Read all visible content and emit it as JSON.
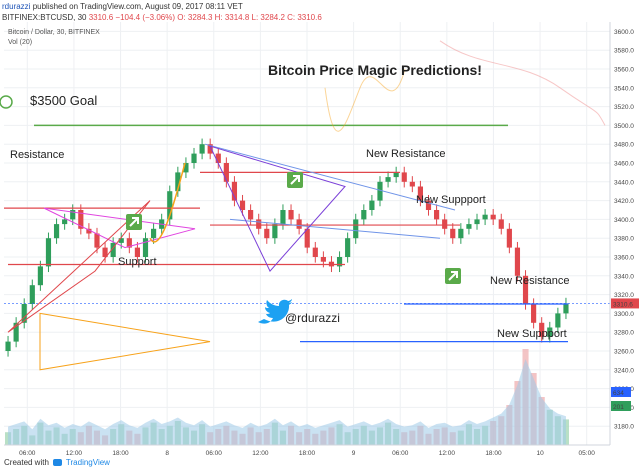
{
  "header": {
    "user": "rdurazzi",
    "published": "published on TradingView.com, August 09, 2017 08:11 VET",
    "symbol": "BITFINEX:BTCUSD, 30",
    "last": "3310.6",
    "change": "−104.4 (−3.06%)",
    "ohlc": "O: 3284.3  H: 3314.8  L: 3284.2  C: 3310.6"
  },
  "chart_meta": {
    "series_label": "Bitcoin / Dollar, 30, BITFINEX",
    "volume_label": "Vol (20)"
  },
  "annotations": {
    "title": "Bitcoin Price Magic Predictions!",
    "goal": "$3500 Goal",
    "resistance": "Resistance",
    "support": "Support",
    "new_resistance_1": "New Resistance",
    "new_support_1": "New Suppport",
    "new_resistance_2": "New Resistance",
    "new_support_2": "New Suppport",
    "twitter": "@rdurazzi"
  },
  "footer": {
    "created_with": "Created with",
    "brand": "TradingView"
  },
  "colors": {
    "up": "#2f9e5b",
    "down": "#e0474c",
    "goal_line": "#5aaa4a",
    "resistance_line": "#e0474c",
    "support_line": "#2962ff",
    "triangle_magenta": "#e046e0",
    "triangle_purple": "#7a3fd8",
    "triangle_orange": "#f7a21a"
  },
  "chart_data": {
    "type": "candlestick",
    "title": "Bitcoin / Dollar, 30, BITFINEX",
    "ylim": [
      3160,
      3610
    ],
    "y_ticks": [
      3600,
      3580,
      3560,
      3540,
      3520,
      3500,
      3480,
      3460,
      3440,
      3420,
      3400,
      3380,
      3360,
      3340,
      3320,
      3300,
      3280,
      3260,
      3240,
      3220,
      3200,
      3180
    ],
    "x_ticks": [
      "06:00",
      "12:00",
      "18:00",
      "8",
      "06:00",
      "12:00",
      "18:00",
      "9",
      "06:00",
      "12:00",
      "18:00",
      "10",
      "05:00"
    ],
    "last_price": 3310.6,
    "volume_tags": [
      "634",
      "201"
    ],
    "close": [
      3270,
      3290,
      3310,
      3330,
      3350,
      3380,
      3395,
      3400,
      3410,
      3390,
      3385,
      3370,
      3360,
      3375,
      3380,
      3370,
      3360,
      3380,
      3390,
      3400,
      3430,
      3450,
      3460,
      3470,
      3480,
      3470,
      3460,
      3440,
      3420,
      3410,
      3400,
      3390,
      3380,
      3395,
      3410,
      3400,
      3390,
      3370,
      3360,
      3355,
      3350,
      3360,
      3380,
      3400,
      3410,
      3420,
      3440,
      3445,
      3450,
      3440,
      3435,
      3420,
      3410,
      3400,
      3390,
      3380,
      3390,
      3395,
      3400,
      3405,
      3400,
      3390,
      3370,
      3340,
      3310,
      3290,
      3275,
      3285,
      3300,
      3310.6
    ],
    "volume": [
      8,
      10,
      12,
      6,
      14,
      9,
      11,
      7,
      10,
      8,
      12,
      9,
      6,
      10,
      13,
      9,
      7,
      11,
      14,
      10,
      12,
      15,
      11,
      9,
      13,
      8,
      10,
      12,
      9,
      7,
      11,
      8,
      10,
      14,
      9,
      12,
      8,
      10,
      7,
      9,
      11,
      13,
      8,
      10,
      12,
      9,
      11,
      14,
      10,
      8,
      9,
      12,
      7,
      10,
      11,
      8,
      9,
      13,
      10,
      12,
      15,
      18,
      25,
      40,
      60,
      45,
      30,
      22,
      18,
      16
    ]
  }
}
